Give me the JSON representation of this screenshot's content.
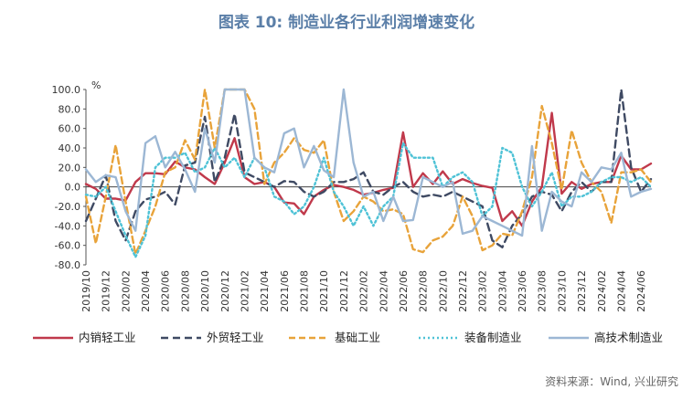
{
  "title": "图表 10: 制造业各行业利润增速变化",
  "source": "资料来源：Wind, 兴业研究",
  "chart_data": {
    "type": "line",
    "unit": "%",
    "ylim": [
      -80,
      100
    ],
    "yticks": [
      "100.0",
      "80.0",
      "60.0",
      "40.0",
      "20.0",
      "0.0",
      "-20.0",
      "-40.0",
      "-60.0",
      "-80.0"
    ],
    "ytick_values": [
      100,
      80,
      60,
      40,
      20,
      0,
      -20,
      -40,
      -60,
      -80
    ],
    "x": [
      "2019/10",
      "2019/11",
      "2019/12",
      "2020/01",
      "2020/02",
      "2020/03",
      "2020/04",
      "2020/05",
      "2020/06",
      "2020/07",
      "2020/08",
      "2020/09",
      "2020/10",
      "2020/11",
      "2020/12",
      "2021/01",
      "2021/02",
      "2021/03",
      "2021/04",
      "2021/05",
      "2021/06",
      "2021/07",
      "2021/08",
      "2021/09",
      "2021/10",
      "2021/11",
      "2021/12",
      "2022/01",
      "2022/02",
      "2022/03",
      "2022/04",
      "2022/05",
      "2022/06",
      "2022/07",
      "2022/08",
      "2022/09",
      "2022/10",
      "2022/11",
      "2022/12",
      "2023/01",
      "2023/02",
      "2023/03",
      "2023/04",
      "2023/05",
      "2023/06",
      "2023/07",
      "2023/08",
      "2023/09",
      "2023/10",
      "2023/11",
      "2023/12",
      "2024/01",
      "2024/02",
      "2024/03",
      "2024/04",
      "2024/05",
      "2024/06",
      "2024/07"
    ],
    "xticks": [
      "2019/10",
      "2019/12",
      "2020/02",
      "2020/04",
      "2020/06",
      "2020/08",
      "2020/10",
      "2020/12",
      "2021/02",
      "2021/04",
      "2021/06",
      "2021/08",
      "2021/10",
      "2021/12",
      "2022/02",
      "2022/04",
      "2022/06",
      "2022/08",
      "2022/10",
      "2022/12",
      "2023/02",
      "2023/04",
      "2023/06",
      "2023/08",
      "2023/10",
      "2023/12",
      "2024/02",
      "2024/04",
      "2024/06"
    ],
    "series": [
      {
        "name": "内销轻工业",
        "color": "#c0394b",
        "dash": "",
        "values": [
          3,
          -2,
          -12,
          -12,
          -14,
          5,
          14,
          14,
          13,
          26,
          20,
          18,
          10,
          3,
          25,
          50,
          10,
          3,
          5,
          0,
          -16,
          -17,
          -28,
          -10,
          -3,
          2,
          0,
          -3,
          -8,
          -6,
          -3,
          -1,
          56,
          0,
          14,
          3,
          16,
          3,
          8,
          4,
          1,
          -1,
          -35,
          -25,
          -40,
          -15,
          0,
          76,
          -7,
          5,
          -2,
          3,
          5,
          5,
          32,
          18,
          18,
          24
        ]
      },
      {
        "name": "外贸轻工业",
        "color": "#3f4a63",
        "dash": "8,5",
        "values": [
          -35,
          -12,
          12,
          -35,
          -55,
          -25,
          -13,
          -10,
          -5,
          -18,
          22,
          25,
          72,
          5,
          30,
          75,
          15,
          10,
          5,
          0,
          6,
          5,
          -5,
          -10,
          -5,
          5,
          5,
          8,
          15,
          -5,
          -8,
          0,
          5,
          -5,
          -10,
          -8,
          -10,
          -5,
          -10,
          -15,
          -20,
          -55,
          -62,
          -40,
          -28,
          -10,
          -5,
          -8,
          -25,
          -5,
          5,
          -5,
          5,
          5,
          100,
          20,
          -5,
          8
        ]
      },
      {
        "name": "基础工业",
        "color": "#e8a33a",
        "dash": "7,4",
        "values": [
          -10,
          -58,
          -10,
          43,
          -15,
          -69,
          -45,
          -20,
          15,
          20,
          48,
          28,
          100,
          40,
          100,
          100,
          100,
          80,
          3,
          25,
          35,
          50,
          38,
          35,
          48,
          -5,
          -35,
          -25,
          -10,
          -15,
          -25,
          -23,
          -28,
          -64,
          -67,
          -55,
          -51,
          -40,
          -10,
          -30,
          -65,
          -60,
          -48,
          -50,
          -25,
          10,
          83,
          45,
          -3,
          58,
          25,
          5,
          -5,
          -37,
          15,
          15,
          18,
          5
        ]
      },
      {
        "name": "装备制造业",
        "color": "#4ec2d6",
        "dash": "2,3",
        "values": [
          -8,
          -10,
          0,
          -25,
          -50,
          -72,
          -50,
          20,
          30,
          30,
          35,
          15,
          20,
          40,
          20,
          30,
          10,
          30,
          20,
          -10,
          -15,
          -28,
          -20,
          0,
          30,
          -5,
          -20,
          -40,
          -20,
          -40,
          -20,
          -10,
          45,
          30,
          30,
          30,
          0,
          10,
          15,
          5,
          -30,
          -20,
          40,
          35,
          0,
          -20,
          -5,
          15,
          -20,
          -10,
          -10,
          -5,
          5,
          10,
          10,
          5,
          10,
          0
        ]
      },
      {
        "name": "高技术制造业",
        "color": "#9cb7d4",
        "dash": "",
        "values": [
          18,
          5,
          12,
          10,
          -25,
          -45,
          45,
          52,
          20,
          36,
          18,
          -5,
          60,
          25,
          100,
          100,
          100,
          30,
          20,
          15,
          55,
          60,
          20,
          42,
          17,
          10,
          100,
          25,
          -10,
          -5,
          -35,
          -10,
          -35,
          -34,
          10,
          5,
          0,
          5,
          -48,
          -45,
          -30,
          -35,
          -40,
          -45,
          -50,
          42,
          -45,
          -5,
          -15,
          -20,
          15,
          5,
          20,
          18,
          35,
          -10,
          -5,
          -2
        ]
      }
    ]
  }
}
